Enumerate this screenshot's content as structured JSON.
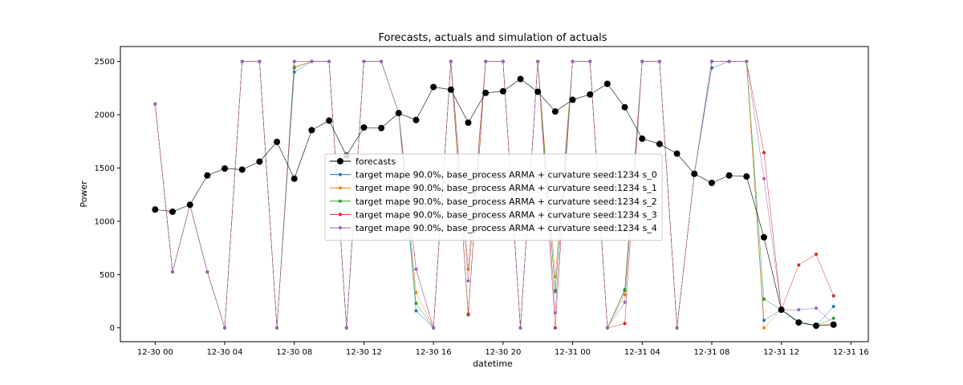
{
  "chart_data": {
    "type": "line",
    "title": "Forecasts, actuals and simulation of actuals",
    "xlabel": "datetime",
    "ylabel": "Power",
    "x": [
      0,
      1,
      2,
      3,
      4,
      5,
      6,
      7,
      8,
      9,
      10,
      11,
      12,
      13,
      14,
      15,
      16,
      17,
      18,
      19,
      20,
      21,
      22,
      23,
      24,
      25,
      26,
      27,
      28,
      29,
      30,
      31,
      32,
      33,
      34,
      35,
      36,
      37,
      38,
      39
    ],
    "x_ticks": [
      {
        "x": 0,
        "label": "12-30 00"
      },
      {
        "x": 4,
        "label": "12-30 04"
      },
      {
        "x": 8,
        "label": "12-30 08"
      },
      {
        "x": 12,
        "label": "12-30 12"
      },
      {
        "x": 16,
        "label": "12-30 16"
      },
      {
        "x": 20,
        "label": "12-30 20"
      },
      {
        "x": 24,
        "label": "12-31 00"
      },
      {
        "x": 28,
        "label": "12-31 04"
      },
      {
        "x": 32,
        "label": "12-31 08"
      },
      {
        "x": 36,
        "label": "12-31 12"
      },
      {
        "x": 40,
        "label": "12-31 16"
      }
    ],
    "xlim": [
      -2,
      41
    ],
    "ylim": [
      -130,
      2640
    ],
    "y_ticks": [
      0,
      500,
      1000,
      1500,
      2000,
      2500
    ],
    "legend_position": "center",
    "grid": false,
    "series": [
      {
        "name": "forecasts",
        "color": "#000000",
        "marker": "large",
        "values": [
          1110,
          1090,
          1155,
          1430,
          1495,
          1485,
          1560,
          1745,
          1400,
          1855,
          1945,
          1615,
          1880,
          1875,
          2015,
          1950,
          2260,
          2235,
          1925,
          2205,
          2220,
          2335,
          2215,
          2030,
          2140,
          2190,
          2290,
          2070,
          1775,
          1725,
          1635,
          1445,
          1360,
          1430,
          1420,
          850,
          170,
          50,
          20,
          30
        ]
      },
      {
        "name": "target mape 90.0%, base_process ARMA + curvature seed:1234 s_0",
        "color": "#1f77b4",
        "marker": "small",
        "values": [
          2100,
          525,
          1155,
          525,
          0,
          2500,
          2500,
          0,
          2400,
          2500,
          2500,
          0,
          2500,
          2500,
          2015,
          160,
          0,
          2500,
          550,
          2500,
          2500,
          0,
          2500,
          350,
          2500,
          2500,
          0,
          350,
          2500,
          2500,
          0,
          1445,
          2440,
          2500,
          2500,
          70,
          170,
          60,
          20,
          200
        ]
      },
      {
        "name": "target mape 90.0%, base_process ARMA + curvature seed:1234 s_1",
        "color": "#ff7f0e",
        "marker": "small",
        "values": [
          2100,
          525,
          1155,
          525,
          0,
          2500,
          2500,
          0,
          2450,
          2500,
          2500,
          0,
          2500,
          2500,
          2015,
          330,
          0,
          2500,
          550,
          2500,
          2500,
          0,
          2500,
          480,
          2500,
          2500,
          0,
          310,
          2500,
          2500,
          0,
          1445,
          2500,
          2500,
          2500,
          0,
          170,
          50,
          20,
          40
        ]
      },
      {
        "name": "target mape 90.0%, base_process ARMA + curvature seed:1234 s_2",
        "color": "#2ca02c",
        "marker": "small",
        "values": [
          2100,
          525,
          1155,
          525,
          0,
          2500,
          2500,
          0,
          2440,
          2500,
          2500,
          0,
          2500,
          2500,
          2015,
          230,
          0,
          2500,
          120,
          2500,
          2500,
          0,
          2500,
          340,
          2500,
          2500,
          0,
          360,
          2500,
          2500,
          0,
          1445,
          2500,
          2500,
          2500,
          270,
          170,
          50,
          20,
          90
        ]
      },
      {
        "name": "target mape 90.0%, base_process ARMA + curvature seed:1234 s_3",
        "color": "#d62728",
        "marker": "small",
        "values": [
          2100,
          525,
          1155,
          525,
          0,
          2500,
          2500,
          0,
          2500,
          2500,
          2500,
          0,
          2500,
          2500,
          2015,
          550,
          0,
          2500,
          130,
          2500,
          2500,
          0,
          2500,
          0,
          2500,
          2500,
          0,
          40,
          2500,
          2500,
          0,
          1445,
          2500,
          2500,
          2500,
          1645,
          170,
          590,
          690,
          300
        ]
      },
      {
        "name": "target mape 90.0%, base_process ARMA + curvature seed:1234 s_4",
        "color": "#9467bd",
        "marker": "small",
        "values": [
          2100,
          525,
          1155,
          525,
          0,
          2500,
          2500,
          0,
          2500,
          2500,
          2500,
          0,
          2500,
          2500,
          2015,
          550,
          0,
          2500,
          440,
          2500,
          2500,
          0,
          2500,
          140,
          2500,
          2500,
          0,
          240,
          2500,
          2500,
          0,
          1445,
          2500,
          2500,
          2500,
          1400,
          170,
          170,
          185,
          40
        ]
      }
    ]
  }
}
